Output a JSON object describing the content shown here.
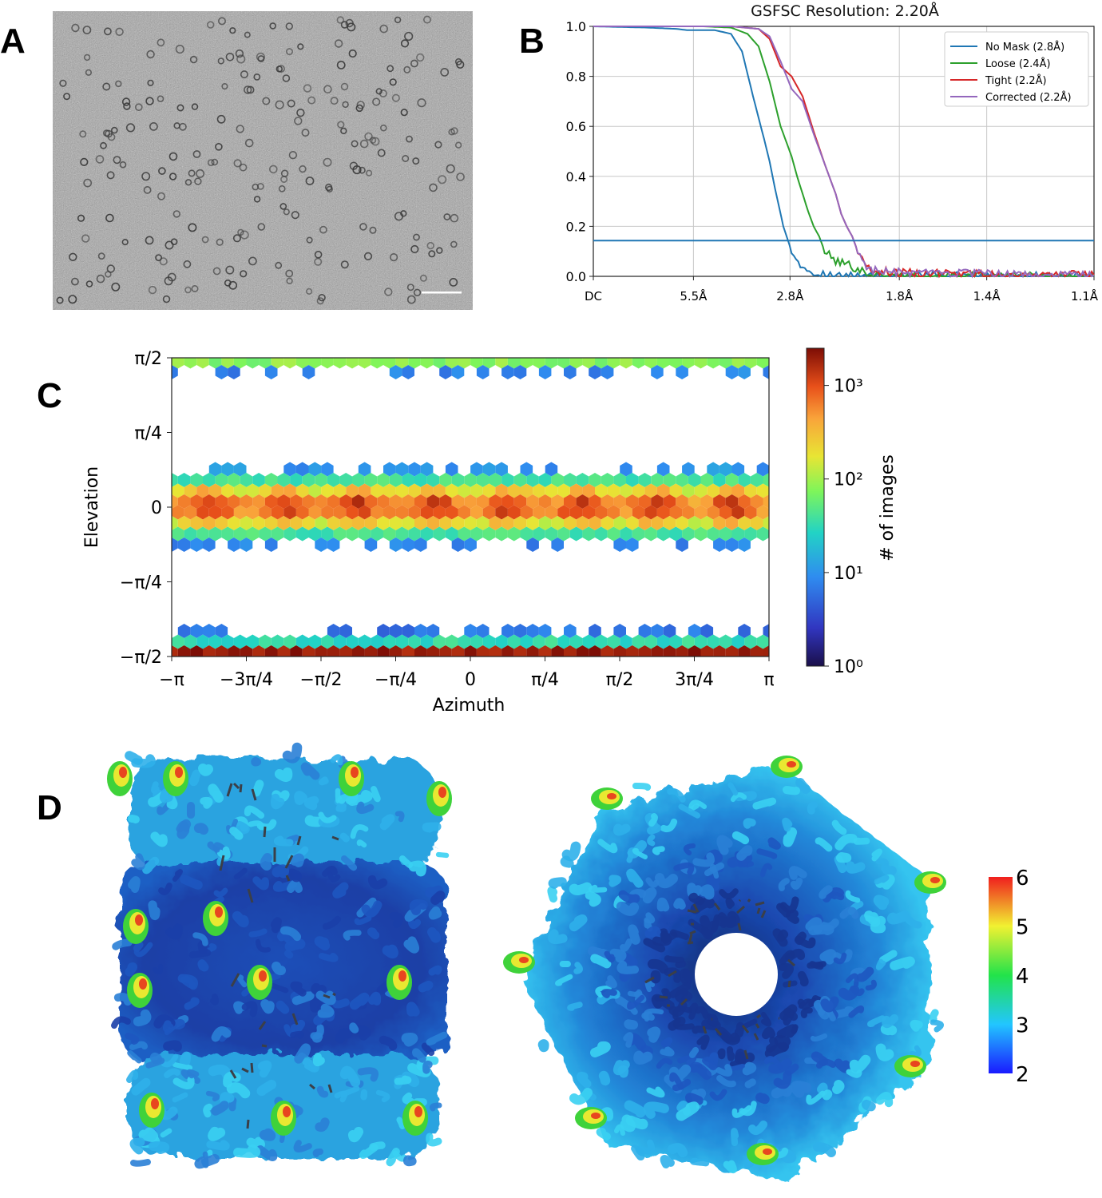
{
  "panels": {
    "a": {
      "letter": "A"
    },
    "b": {
      "letter": "B"
    },
    "c": {
      "letter": "C"
    },
    "d": {
      "letter": "D"
    }
  },
  "colors": {
    "no_mask": "#1f77b4",
    "loose": "#2ca02c",
    "tight": "#d62728",
    "corrected": "#9467bd",
    "threshold": "#1f77b4"
  },
  "chart_data": [
    {
      "type": "line",
      "title": "GSFSC Resolution: 2.20Å",
      "xlabel": "",
      "ylabel": "",
      "x_tick_labels": [
        "DC",
        "5.5Å",
        "2.8Å",
        "1.8Å",
        "1.4Å",
        "1.1Å"
      ],
      "x_tick_positions_inverse_A": [
        0,
        0.1818,
        0.3571,
        0.5556,
        0.7143,
        0.9091
      ],
      "xlim_inverse_A": [
        0,
        0.9091
      ],
      "ylim": [
        0,
        1.0
      ],
      "y_ticks": [
        "0.0",
        "0.2",
        "0.4",
        "0.6",
        "0.8",
        "1.0"
      ],
      "grid": true,
      "legend_position": "top-right",
      "threshold": 0.143,
      "series": [
        {
          "name": "No Mask (2.8Å)",
          "color": "#1f77b4",
          "x": [
            0,
            0.1,
            0.15,
            0.17,
            0.22,
            0.25,
            0.27,
            0.29,
            0.31,
            0.32,
            0.33,
            0.345,
            0.36,
            0.38,
            0.4,
            0.43,
            0.48,
            0.6,
            0.8,
            0.909
          ],
          "y": [
            1.0,
            0.995,
            0.99,
            0.985,
            0.985,
            0.97,
            0.9,
            0.72,
            0.55,
            0.46,
            0.35,
            0.2,
            0.1,
            0.04,
            0.015,
            0.005,
            0.0,
            0.0,
            0.0,
            0.0
          ]
        },
        {
          "name": "Loose (2.4Å)",
          "color": "#2ca02c",
          "x": [
            0,
            0.2,
            0.25,
            0.28,
            0.3,
            0.32,
            0.34,
            0.36,
            0.37,
            0.39,
            0.4,
            0.41,
            0.42,
            0.44,
            0.46,
            0.48,
            0.5,
            0.52,
            0.55,
            0.6,
            0.909
          ],
          "y": [
            1.0,
            1.0,
            0.995,
            0.97,
            0.92,
            0.78,
            0.6,
            0.48,
            0.4,
            0.26,
            0.2,
            0.16,
            0.1,
            0.06,
            0.05,
            0.03,
            0.01,
            0.005,
            0.0,
            0.0,
            0.0
          ]
        },
        {
          "name": "Tight (2.2Å)",
          "color": "#d62728",
          "x": [
            0,
            0.25,
            0.3,
            0.32,
            0.34,
            0.36,
            0.38,
            0.4,
            0.42,
            0.44,
            0.45,
            0.46,
            0.47,
            0.48,
            0.5,
            0.52,
            0.55,
            0.6,
            0.7,
            0.8,
            0.909
          ],
          "y": [
            1.0,
            1.0,
            0.99,
            0.95,
            0.84,
            0.8,
            0.72,
            0.58,
            0.45,
            0.33,
            0.25,
            0.2,
            0.16,
            0.1,
            0.03,
            0.02,
            0.015,
            0.01,
            0.01,
            0.005,
            0.005
          ]
        },
        {
          "name": "Corrected (2.2Å)",
          "color": "#9467bd",
          "x": [
            0,
            0.25,
            0.3,
            0.32,
            0.34,
            0.36,
            0.38,
            0.4,
            0.42,
            0.44,
            0.45,
            0.46,
            0.47,
            0.48,
            0.5,
            0.52,
            0.55,
            0.6,
            0.7,
            0.8,
            0.909
          ],
          "y": [
            1.0,
            1.0,
            0.99,
            0.96,
            0.86,
            0.75,
            0.7,
            0.57,
            0.45,
            0.33,
            0.25,
            0.2,
            0.16,
            0.1,
            0.03,
            0.02,
            0.015,
            0.01,
            0.01,
            0.005,
            0.005
          ]
        }
      ]
    },
    {
      "type": "heatmap",
      "title": "",
      "xlabel": "Azimuth",
      "ylabel": "Elevation",
      "x_ticks": [
        "−π",
        "−3π/4",
        "−π/2",
        "−π/4",
        "0",
        "π/4",
        "π/2",
        "3π/4",
        "π"
      ],
      "y_ticks": [
        "π/2",
        "π/4",
        "0",
        "−π/4",
        "−π/2"
      ],
      "xlim": [
        -3.1416,
        3.1416
      ],
      "ylim": [
        -1.5708,
        1.5708
      ],
      "colorbar_label": "# of images",
      "colorbar_ticks": [
        "10⁰",
        "10¹",
        "10²",
        "10³"
      ],
      "colorbar_scale": "log",
      "colorbar_range": [
        1,
        2500
      ],
      "bands": [
        {
          "elevation": 1.54,
          "log10_count": 1.9,
          "note": "top band"
        },
        {
          "elevation": 1.42,
          "log10_count": 0.9
        },
        {
          "elevation": 0.4,
          "log10_count": 1.0
        },
        {
          "elevation": 0.24,
          "log10_count": 1.6
        },
        {
          "elevation": 0.12,
          "log10_count": 2.3
        },
        {
          "elevation": 0.0,
          "log10_count": 2.8
        },
        {
          "elevation": -0.12,
          "log10_count": 2.3
        },
        {
          "elevation": -0.24,
          "log10_count": 1.6
        },
        {
          "elevation": -0.36,
          "log10_count": 0.9
        },
        {
          "elevation": -1.32,
          "log10_count": 0.8
        },
        {
          "elevation": -1.42,
          "log10_count": 1.5
        },
        {
          "elevation": -1.5,
          "log10_count": 3.3
        }
      ],
      "equator_peaks_azimuth": [
        -2.76,
        -1.96,
        -1.17,
        -0.39,
        0.39,
        1.17,
        1.96,
        2.76
      ]
    },
    {
      "type": "other",
      "title": "",
      "colorbar_ticks": [
        "6",
        "5",
        "4",
        "3",
        "2"
      ],
      "colorbar_range": [
        2,
        6
      ]
    }
  ]
}
